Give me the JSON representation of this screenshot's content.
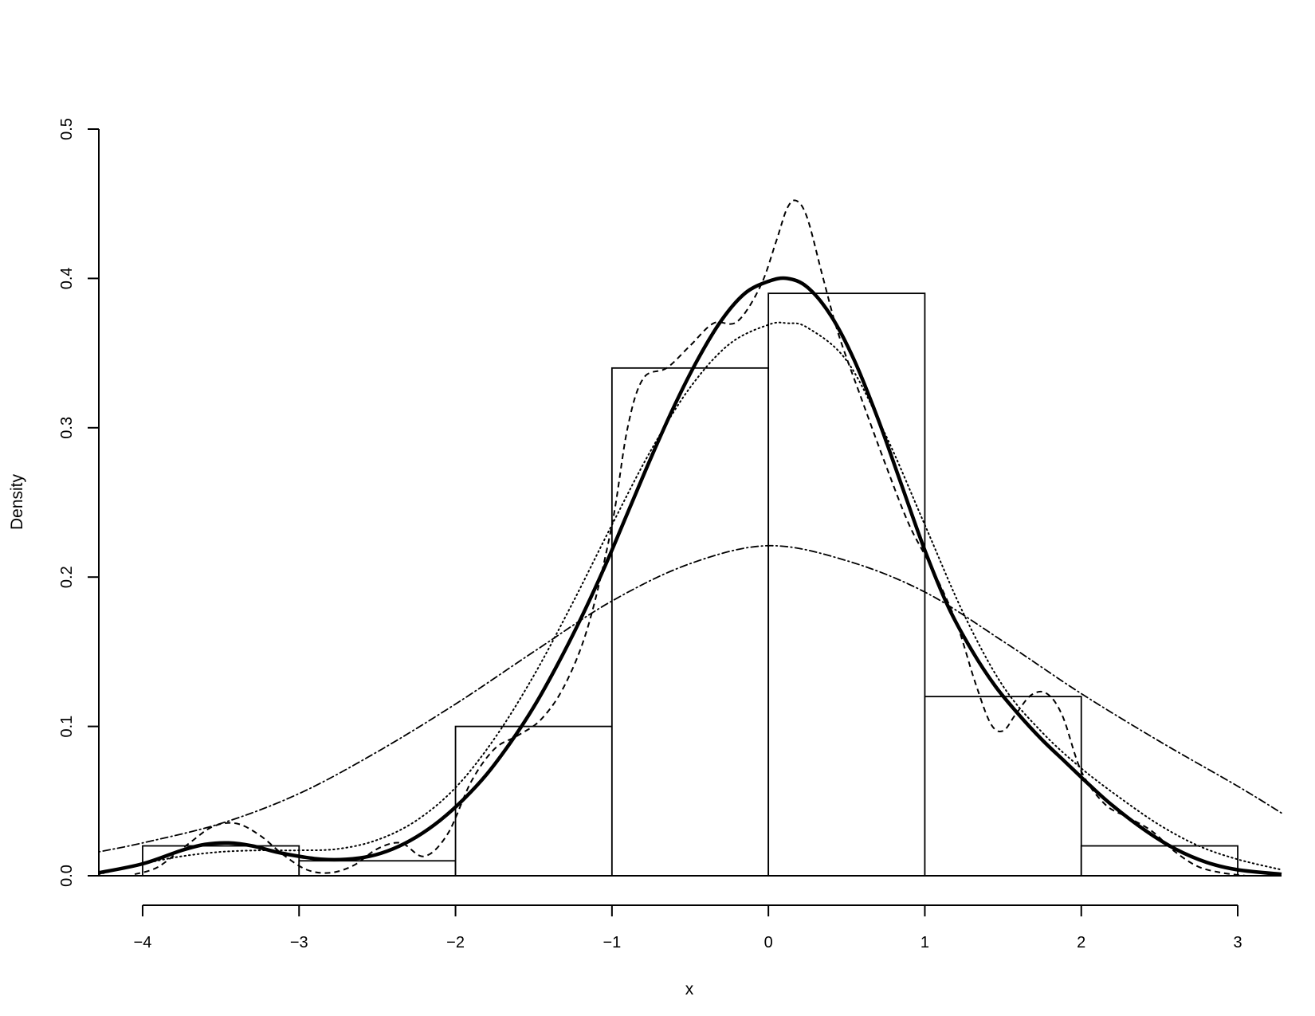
{
  "chart_data": {
    "type": "bar",
    "title": "",
    "xlabel": "x",
    "ylabel": "Density",
    "xlim": [
      -4.28,
      3.28
    ],
    "ylim": [
      0,
      0.5
    ],
    "x_ticks": [
      -4,
      -3,
      -2,
      -1,
      0,
      1,
      2,
      3
    ],
    "x_tick_labels": [
      "−4",
      "−3",
      "−2",
      "−1",
      "0",
      "1",
      "2",
      "3"
    ],
    "y_ticks": [
      0,
      0.1,
      0.2,
      0.3,
      0.4,
      0.5
    ],
    "y_tick_labels": [
      "0.0",
      "0.1",
      "0.2",
      "0.3",
      "0.4",
      "0.5"
    ],
    "grid": false,
    "histogram": {
      "bin_edges": [
        -4,
        -3,
        -2,
        -1,
        0,
        1,
        2,
        3
      ],
      "density": [
        0.02,
        0.01,
        0.1,
        0.34,
        0.39,
        0.12,
        0.02
      ]
    },
    "series": [
      {
        "line_style": "solid-thick",
        "x": [
          -4.28,
          -4.0,
          -3.75,
          -3.6,
          -3.45,
          -3.3,
          -3.15,
          -3.0,
          -2.85,
          -2.7,
          -2.55,
          -2.4,
          -2.25,
          -2.1,
          -1.95,
          -1.8,
          -1.65,
          -1.5,
          -1.35,
          -1.2,
          -1.05,
          -0.9,
          -0.75,
          -0.6,
          -0.45,
          -0.3,
          -0.15,
          0.0,
          0.12,
          0.25,
          0.4,
          0.55,
          0.7,
          0.85,
          1.0,
          1.15,
          1.3,
          1.45,
          1.6,
          1.75,
          1.9,
          2.05,
          2.2,
          2.4,
          2.6,
          2.8,
          3.0,
          3.28
        ],
        "y": [
          0.002,
          0.008,
          0.017,
          0.021,
          0.022,
          0.02,
          0.016,
          0.013,
          0.011,
          0.011,
          0.013,
          0.018,
          0.026,
          0.037,
          0.051,
          0.068,
          0.089,
          0.113,
          0.141,
          0.172,
          0.206,
          0.243,
          0.28,
          0.315,
          0.346,
          0.372,
          0.39,
          0.398,
          0.4,
          0.394,
          0.375,
          0.345,
          0.306,
          0.262,
          0.218,
          0.18,
          0.151,
          0.127,
          0.108,
          0.091,
          0.076,
          0.061,
          0.047,
          0.031,
          0.018,
          0.009,
          0.004,
          0.001
        ]
      },
      {
        "line_style": "dashed",
        "x": [
          -4.05,
          -3.9,
          -3.7,
          -3.55,
          -3.4,
          -3.25,
          -3.1,
          -2.95,
          -2.8,
          -2.65,
          -2.5,
          -2.35,
          -2.2,
          -2.05,
          -1.9,
          -1.75,
          -1.6,
          -1.45,
          -1.3,
          -1.15,
          -1.0,
          -0.9,
          -0.8,
          -0.65,
          -0.5,
          -0.35,
          -0.2,
          -0.05,
          0.05,
          0.12,
          0.18,
          0.25,
          0.35,
          0.45,
          0.6,
          0.75,
          0.9,
          1.05,
          1.2,
          1.32,
          1.42,
          1.5,
          1.58,
          1.68,
          1.78,
          1.88,
          2.0,
          2.15,
          2.3,
          2.45,
          2.6,
          2.75,
          2.9,
          3.05
        ],
        "y": [
          0.001,
          0.006,
          0.022,
          0.033,
          0.035,
          0.027,
          0.014,
          0.004,
          0.002,
          0.007,
          0.018,
          0.022,
          0.013,
          0.028,
          0.063,
          0.085,
          0.094,
          0.105,
          0.128,
          0.168,
          0.235,
          0.3,
          0.333,
          0.34,
          0.355,
          0.37,
          0.371,
          0.395,
          0.425,
          0.447,
          0.452,
          0.44,
          0.4,
          0.362,
          0.318,
          0.275,
          0.235,
          0.205,
          0.17,
          0.13,
          0.102,
          0.097,
          0.108,
          0.121,
          0.122,
          0.107,
          0.07,
          0.048,
          0.039,
          0.03,
          0.016,
          0.006,
          0.002,
          0.0
        ]
      },
      {
        "line_style": "dotted",
        "x": [
          -4.28,
          -4.0,
          -3.75,
          -3.5,
          -3.25,
          -3.0,
          -2.75,
          -2.5,
          -2.25,
          -2.0,
          -1.75,
          -1.5,
          -1.25,
          -1.0,
          -0.75,
          -0.5,
          -0.25,
          0.0,
          0.12,
          0.25,
          0.5,
          0.75,
          1.0,
          1.25,
          1.5,
          1.75,
          2.0,
          2.25,
          2.5,
          2.75,
          3.0,
          3.28
        ],
        "y": [
          0.001,
          0.008,
          0.013,
          0.016,
          0.017,
          0.017,
          0.018,
          0.024,
          0.037,
          0.059,
          0.092,
          0.134,
          0.183,
          0.235,
          0.285,
          0.327,
          0.356,
          0.369,
          0.37,
          0.367,
          0.345,
          0.295,
          0.235,
          0.175,
          0.127,
          0.096,
          0.072,
          0.052,
          0.034,
          0.02,
          0.011,
          0.004
        ]
      },
      {
        "line_style": "dot-dash",
        "x": [
          -4.28,
          -4.0,
          -3.5,
          -3.0,
          -2.5,
          -2.0,
          -1.5,
          -1.0,
          -0.5,
          0.0,
          0.5,
          1.0,
          1.5,
          2.0,
          2.5,
          3.0,
          3.28
        ],
        "y": [
          0.016,
          0.022,
          0.035,
          0.055,
          0.083,
          0.115,
          0.15,
          0.184,
          0.209,
          0.221,
          0.211,
          0.19,
          0.157,
          0.122,
          0.09,
          0.06,
          0.042
        ]
      }
    ]
  }
}
